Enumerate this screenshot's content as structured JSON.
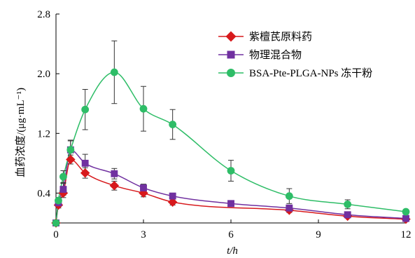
{
  "chart_data": {
    "type": "line",
    "xlabel": "t/h",
    "ylabel": "血药浓度/(μg·mL⁻¹)",
    "xlim": [
      0,
      12
    ],
    "ylim": [
      0,
      2.8
    ],
    "xticks": [
      0,
      3,
      6,
      9,
      12
    ],
    "yticks": [
      0.4,
      1.2,
      2.0,
      2.8
    ],
    "ytick_labels": [
      "0.4",
      "1.2",
      "2.0",
      "2.8"
    ],
    "grid": false,
    "legend_position": "top-right",
    "series": [
      {
        "name": "紫檀芪原料药",
        "color": "#d7191c",
        "marker": "diamond",
        "x": [
          0,
          0.083,
          0.25,
          0.5,
          1,
          2,
          3,
          4,
          8,
          10,
          12
        ],
        "y": [
          0,
          0.24,
          0.4,
          0.85,
          0.67,
          0.5,
          0.4,
          0.28,
          0.17,
          0.09,
          0.05
        ],
        "err": [
          0,
          0.04,
          0.06,
          0.06,
          0.07,
          0.06,
          0.05,
          0.04,
          0.03,
          0.02,
          0.02
        ]
      },
      {
        "name": "物理混合物",
        "color": "#7030a0",
        "marker": "square",
        "x": [
          0,
          0.083,
          0.25,
          0.5,
          1,
          2,
          3,
          4,
          6,
          8,
          10,
          12
        ],
        "y": [
          0,
          0.27,
          0.45,
          0.98,
          0.8,
          0.66,
          0.47,
          0.36,
          0.26,
          0.2,
          0.11,
          0.06
        ],
        "err": [
          0,
          0.05,
          0.08,
          0.13,
          0.12,
          0.07,
          0.05,
          0.04,
          0.03,
          0.03,
          0.02,
          0.02
        ]
      },
      {
        "name": "BSA-Pte-PLGA-NPs 冻干粉",
        "color": "#2ebd67",
        "marker": "circle",
        "x": [
          0,
          0.083,
          0.25,
          0.5,
          1,
          2,
          3,
          4,
          6,
          8,
          10,
          12
        ],
        "y": [
          0,
          0.3,
          0.62,
          0.98,
          1.52,
          2.02,
          1.53,
          1.32,
          0.7,
          0.36,
          0.25,
          0.15
        ],
        "err": [
          0,
          0.04,
          0.08,
          0.12,
          0.27,
          0.42,
          0.3,
          0.2,
          0.14,
          0.1,
          0.06,
          0.03
        ]
      }
    ]
  }
}
